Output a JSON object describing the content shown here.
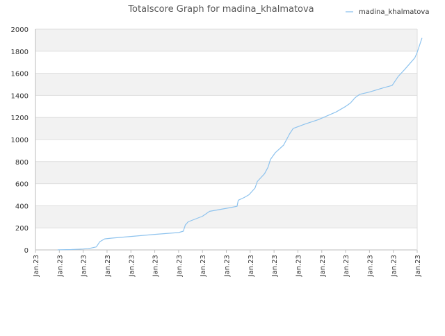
{
  "chart_data": {
    "type": "line",
    "title": "Totalscore Graph for madina_khalmatova",
    "xlabel": "",
    "ylabel": "",
    "ylim": [
      0,
      2000
    ],
    "yticks": [
      0,
      200,
      400,
      600,
      800,
      1000,
      1200,
      1400,
      1600,
      1800,
      2000
    ],
    "xlim": [
      0,
      16
    ],
    "xticks": [
      0,
      1,
      2,
      3,
      4,
      5,
      6,
      7,
      8,
      9,
      10,
      11,
      12,
      13,
      14,
      15,
      16
    ],
    "xtick_labels": [
      "Jan.23",
      "Jan.23",
      "Jan.23",
      "Jan.23",
      "Jan.23",
      "Jan.23",
      "Jan.23",
      "Jan.23",
      "Jan.23",
      "Jan.23",
      "Jan.23",
      "Jan.23",
      "Jan.23",
      "Jan.23",
      "Jan.23",
      "Jan.23",
      "Jan.23"
    ],
    "grid": true,
    "legend_position": "top-right",
    "colors": {
      "line": "#8ec3ee",
      "band": "#f2f2f2",
      "grid": "#dddddd",
      "axis": "#bbbbbb",
      "text": "#333333",
      "title": "#555555"
    },
    "series": [
      {
        "name": "madina_khalmatova",
        "points": [
          [
            0.93,
            1
          ],
          [
            1.5,
            3
          ],
          [
            2.0,
            8
          ],
          [
            2.3,
            15
          ],
          [
            2.55,
            27
          ],
          [
            2.7,
            75
          ],
          [
            2.9,
            100
          ],
          [
            3.2,
            107
          ],
          [
            4.0,
            122
          ],
          [
            5.0,
            141
          ],
          [
            6.0,
            157
          ],
          [
            6.2,
            170
          ],
          [
            6.28,
            225
          ],
          [
            6.4,
            255
          ],
          [
            7.0,
            305
          ],
          [
            7.3,
            350
          ],
          [
            8.0,
            377
          ],
          [
            8.45,
            395
          ],
          [
            8.5,
            450
          ],
          [
            8.75,
            475
          ],
          [
            8.95,
            500
          ],
          [
            9.2,
            560
          ],
          [
            9.3,
            620
          ],
          [
            9.6,
            690
          ],
          [
            9.75,
            750
          ],
          [
            9.85,
            820
          ],
          [
            10.05,
            880
          ],
          [
            10.4,
            950
          ],
          [
            10.65,
            1050
          ],
          [
            10.8,
            1100
          ],
          [
            11.3,
            1140
          ],
          [
            11.85,
            1180
          ],
          [
            12.6,
            1250
          ],
          [
            13.0,
            1300
          ],
          [
            13.2,
            1330
          ],
          [
            13.4,
            1380
          ],
          [
            13.6,
            1410
          ],
          [
            14.0,
            1430
          ],
          [
            14.6,
            1470
          ],
          [
            14.95,
            1490
          ],
          [
            15.2,
            1570
          ],
          [
            15.5,
            1640
          ],
          [
            15.9,
            1740
          ],
          [
            16.0,
            1790
          ],
          [
            16.2,
            1920
          ]
        ]
      }
    ]
  }
}
